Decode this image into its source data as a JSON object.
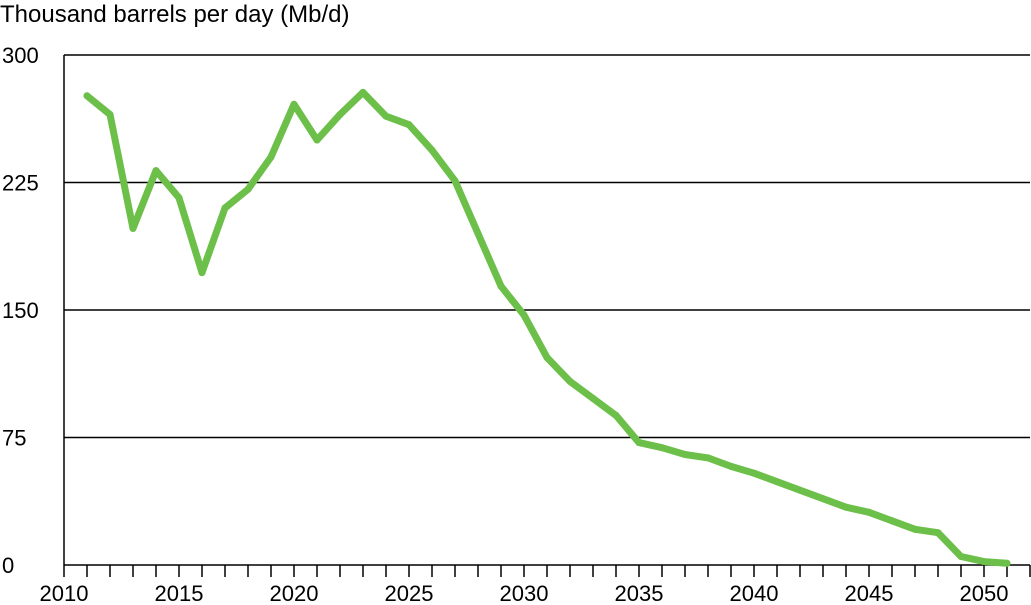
{
  "chart_data": {
    "type": "line",
    "ylabel": "Thousand barrels per day (Mb/d)",
    "xlim": [
      2010,
      2052
    ],
    "ylim": [
      0,
      300
    ],
    "x_ticks": [
      2010,
      2015,
      2020,
      2025,
      2030,
      2035,
      2040,
      2045,
      2050
    ],
    "x_tick_labels": [
      "2010",
      "2015",
      "2020",
      "2025",
      "2030",
      "2035",
      "2040",
      "2045",
      "2050"
    ],
    "y_ticks": [
      0,
      75,
      150,
      225,
      300
    ],
    "y_tick_labels": [
      "0",
      "75",
      "150",
      "225",
      "300"
    ],
    "grid": "horizontal",
    "legend": "none",
    "series": [
      {
        "color": "#6cc04a",
        "x": [
          2011,
          2012,
          2013,
          2014,
          2015,
          2016,
          2017,
          2018,
          2019,
          2020,
          2021,
          2022,
          2023,
          2024,
          2025,
          2026,
          2027,
          2028,
          2029,
          2030,
          2031,
          2032,
          2033,
          2034,
          2035,
          2036,
          2037,
          2038,
          2039,
          2040,
          2041,
          2042,
          2043,
          2044,
          2045,
          2046,
          2047,
          2048,
          2049,
          2050,
          2051
        ],
        "y": [
          276,
          265,
          198,
          232,
          216,
          172,
          210,
          221,
          240,
          271,
          250,
          265,
          278,
          264,
          259,
          244,
          226,
          195,
          164,
          147,
          122,
          108,
          98,
          88,
          72,
          69,
          65,
          63,
          58,
          54,
          49,
          44,
          39,
          34,
          31,
          26,
          21,
          19,
          5,
          2,
          1
        ]
      }
    ]
  }
}
